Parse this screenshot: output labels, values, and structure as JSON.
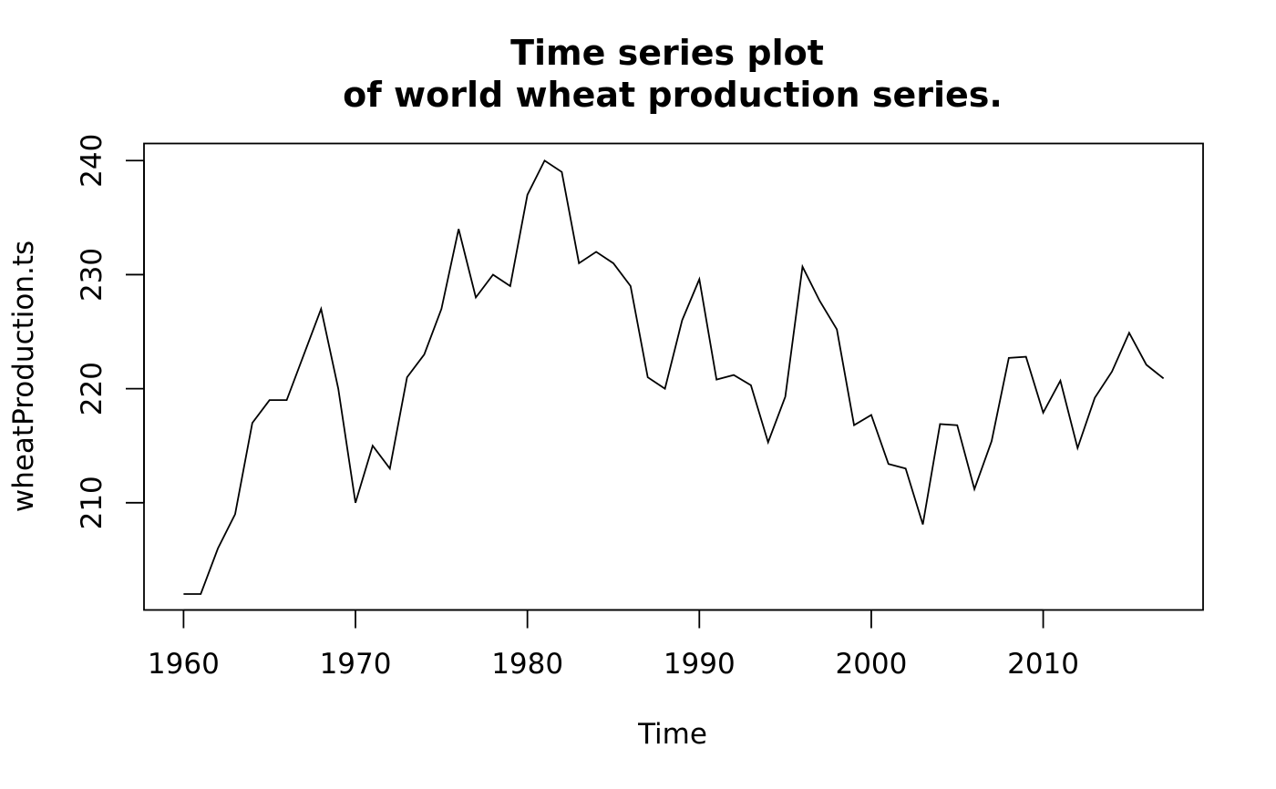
{
  "chart_data": {
    "type": "line",
    "title_line1": "Time series plot",
    "title_line2": "of world wheat production series.",
    "xlabel": "Time",
    "ylabel": "wheatProduction.ts",
    "xlim": [
      1957.7,
      2019.3
    ],
    "ylim": [
      200.6,
      241.5
    ],
    "x_ticks": [
      1960,
      1970,
      1980,
      1990,
      2000,
      2010
    ],
    "x_tick_labels": [
      "1960",
      "1970",
      "1980",
      "1990",
      "2000",
      "2010"
    ],
    "y_ticks": [
      210,
      220,
      230,
      240
    ],
    "y_tick_labels": [
      "210",
      "220",
      "230",
      "240"
    ],
    "line_color": "#000000",
    "grid": false,
    "series": [
      {
        "x": [
          1960,
          1961,
          1962,
          1963,
          1964,
          1965,
          1966,
          1967,
          1968,
          1969,
          1970,
          1971,
          1972,
          1973,
          1974,
          1975,
          1976,
          1977,
          1978,
          1979,
          1980,
          1981,
          1982,
          1983,
          1984,
          1985,
          1986,
          1987,
          1988,
          1989,
          1990,
          1991,
          1992,
          1993,
          1994,
          1995,
          1996,
          1997,
          1998,
          1999,
          2000,
          2001,
          2002,
          2003,
          2004,
          2005,
          2006,
          2007,
          2008,
          2009,
          2010,
          2011,
          2012,
          2013,
          2014,
          2015,
          2016,
          2017
        ],
        "values": [
          202,
          202,
          206,
          209,
          217,
          219,
          219,
          223,
          227,
          220,
          210,
          215,
          213,
          221,
          223,
          227,
          234,
          228,
          230,
          229,
          237,
          240,
          239,
          231,
          232,
          231,
          229,
          221,
          220,
          226,
          229.6,
          220.8,
          221.2,
          220.3,
          215.3,
          219.3,
          230.7,
          227.7,
          225.2,
          216.8,
          217.7,
          213.4,
          213,
          208.1,
          216.9,
          216.8,
          211.2,
          215.4,
          222.7,
          222.8,
          217.9,
          220.7,
          214.8,
          219.2,
          221.5,
          224.9,
          222.1,
          220.9
        ]
      }
    ]
  }
}
